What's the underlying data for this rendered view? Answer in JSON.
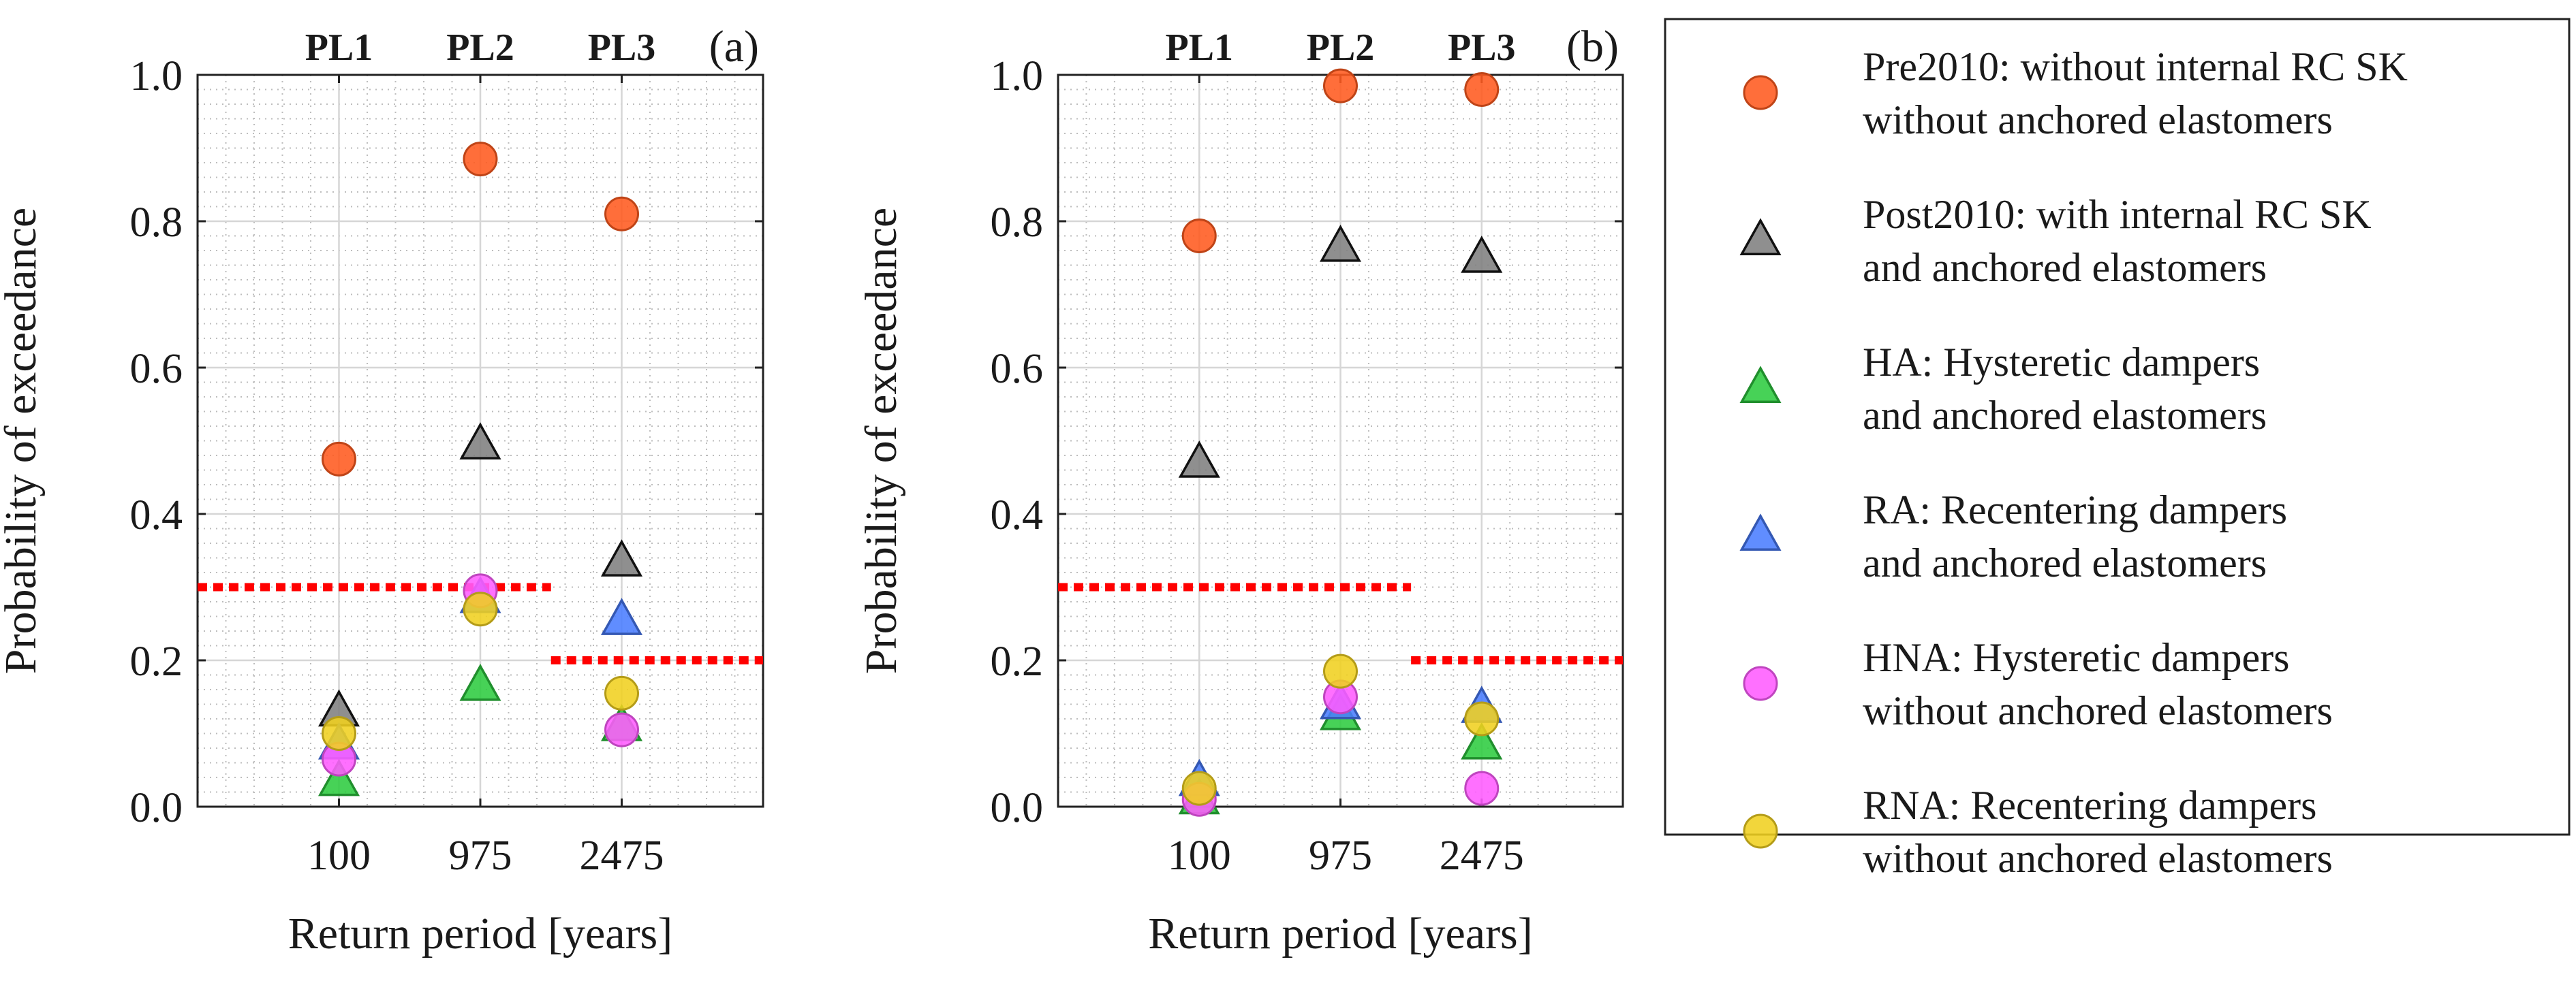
{
  "colors": {
    "pre2010": "#ff5a1f",
    "post2010": "#808080",
    "ha": "#2ecc40",
    "ra": "#4a7dff",
    "hna": "#ff5cff",
    "rna": "#f0d020",
    "threshold": "#ff0000"
  },
  "chart_data": [
    {
      "type": "scatter",
      "panel_label": "(a)",
      "xlabel": "Return period [years]",
      "ylabel": "Probability of exceedance",
      "categories": [
        "100",
        "975",
        "2475"
      ],
      "category_titles": [
        "PL1",
        "PL2",
        "PL3"
      ],
      "xlim": [
        0,
        4
      ],
      "ylim": [
        0,
        1
      ],
      "yticks": [
        "0.0",
        "0.2",
        "0.4",
        "0.6",
        "0.8",
        "1.0"
      ],
      "grid": true,
      "series": [
        {
          "key": "pre2010",
          "marker": "circle",
          "values": [
            0.475,
            0.885,
            0.81
          ]
        },
        {
          "key": "post2010",
          "marker": "triangle",
          "values": [
            0.13,
            0.495,
            0.335
          ]
        },
        {
          "key": "ha",
          "marker": "triangle",
          "values": [
            0.035,
            0.165,
            0.11
          ]
        },
        {
          "key": "ra",
          "marker": "triangle",
          "values": [
            0.085,
            0.285,
            0.255
          ]
        },
        {
          "key": "hna",
          "marker": "circle",
          "values": [
            0.065,
            0.295,
            0.105
          ]
        },
        {
          "key": "rna",
          "marker": "circle",
          "values": [
            0.1,
            0.27,
            0.155
          ]
        }
      ],
      "thresholds": [
        {
          "x0": 0,
          "x1": 2.5,
          "y": 0.3
        },
        {
          "x0": 2.5,
          "x1": 4,
          "y": 0.2
        }
      ]
    },
    {
      "type": "scatter",
      "panel_label": "(b)",
      "xlabel": "Return period [years]",
      "ylabel": "Probability of exceedance",
      "categories": [
        "100",
        "975",
        "2475"
      ],
      "category_titles": [
        "PL1",
        "PL2",
        "PL3"
      ],
      "xlim": [
        0,
        4
      ],
      "ylim": [
        0,
        1
      ],
      "yticks": [
        "0.0",
        "0.2",
        "0.4",
        "0.6",
        "0.8",
        "1.0"
      ],
      "grid": true,
      "series": [
        {
          "key": "pre2010",
          "marker": "circle",
          "values": [
            0.78,
            0.985,
            0.98
          ]
        },
        {
          "key": "post2010",
          "marker": "triangle",
          "values": [
            0.47,
            0.765,
            0.75
          ]
        },
        {
          "key": "ha",
          "marker": "triangle",
          "values": [
            0.01,
            0.125,
            0.085
          ]
        },
        {
          "key": "ra",
          "marker": "triangle",
          "values": [
            0.035,
            0.14,
            0.135
          ]
        },
        {
          "key": "hna",
          "marker": "circle",
          "values": [
            0.01,
            0.15,
            0.025
          ]
        },
        {
          "key": "rna",
          "marker": "circle",
          "values": [
            0.025,
            0.185,
            0.12
          ]
        }
      ],
      "thresholds": [
        {
          "x0": 0,
          "x1": 2.5,
          "y": 0.3
        },
        {
          "x0": 2.5,
          "x1": 4,
          "y": 0.2
        }
      ]
    }
  ],
  "legend": {
    "placement": "right",
    "items": [
      {
        "key": "pre2010",
        "marker": "circle",
        "line1": "Pre2010: without internal RC SK",
        "line2": "without anchored elastomers"
      },
      {
        "key": "post2010",
        "marker": "triangle",
        "line1": "Post2010: with internal RC SK",
        "line2": "and anchored elastomers"
      },
      {
        "key": "ha",
        "marker": "triangle",
        "line1": "HA: Hysteretic dampers",
        "line2": "and anchored elastomers"
      },
      {
        "key": "ra",
        "marker": "triangle",
        "line1": "RA: Recentering dampers",
        "line2": "and anchored elastomers"
      },
      {
        "key": "hna",
        "marker": "circle",
        "line1": "HNA: Hysteretic dampers",
        "line2": "without anchored elastomers"
      },
      {
        "key": "rna",
        "marker": "circle",
        "line1": "RNA: Recentering dampers",
        "line2": "without anchored elastomers"
      }
    ]
  }
}
